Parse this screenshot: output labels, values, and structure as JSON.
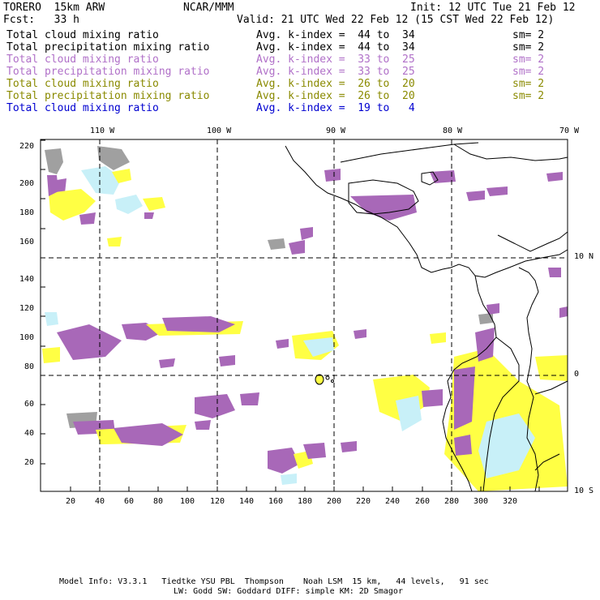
{
  "header": {
    "model": "TORERO  15km ARW",
    "center": "NCAR/MMM",
    "init": "Init: 12 UTC Tue 21 Feb 12",
    "fcst": "Fcst:   33 h",
    "valid": "Valid: 21 UTC Wed 22 Feb 12 (15 CST Wed 22 Feb 12)"
  },
  "legend": [
    {
      "field": "Total cloud mixing ratio",
      "kindex": "Avg. k-index =  44 to  34",
      "sm": "sm= 2",
      "color": "#000000"
    },
    {
      "field": "Total precipitation mixing ratio",
      "kindex": "Avg. k-index =  44 to  34",
      "sm": "sm= 2",
      "color": "#000000"
    },
    {
      "field": "Total cloud mixing ratio",
      "kindex": "Avg. k-index =  33 to  25",
      "sm": "sm= 2",
      "color": "#b070c8"
    },
    {
      "field": "Total precipitation mixing ratio",
      "kindex": "Avg. k-index =  33 to  25",
      "sm": "sm= 2",
      "color": "#b070c8"
    },
    {
      "field": "Total cloud mixing ratio",
      "kindex": "Avg. k-index =  26 to  20",
      "sm": "sm= 2",
      "color": "#8a8a00"
    },
    {
      "field": "Total precipitation mixing ratio",
      "kindex": "Avg. k-index =  26 to  20",
      "sm": "sm= 2",
      "color": "#8a8a00"
    },
    {
      "field": "Total cloud mixing ratio",
      "kindex": "Avg. k-index =  19 to   4",
      "sm": "",
      "color": "#0000d0"
    }
  ],
  "map": {
    "lon_labels": [
      "110 W",
      "100 W",
      "90 W",
      "80 W",
      "70 W"
    ],
    "lat_labels": [
      "10 N",
      "0",
      "10 S"
    ],
    "x_ticks": [
      "20",
      "40",
      "60",
      "80",
      "100",
      "120",
      "140",
      "160",
      "180",
      "200",
      "220",
      "240",
      "260",
      "280",
      "300",
      "320"
    ],
    "y_ticks": [
      "20",
      "40",
      "60",
      "80",
      "100",
      "120",
      "140",
      "160",
      "180",
      "200",
      "220"
    ],
    "colors": {
      "purple": "#a868b8",
      "yellow": "#ffff44",
      "cyan": "#c8f0f8",
      "gray": "#a0a0a0",
      "grid": "#000000"
    }
  },
  "footer": {
    "line1": "Model Info: V3.3.1   Tiedtke YSU PBL  Thompson    Noah LSM  15 km,   44 levels,   91 sec",
    "line2": "LW: Godd SW: Goddard DIFF: simple KM: 2D Smagor"
  }
}
